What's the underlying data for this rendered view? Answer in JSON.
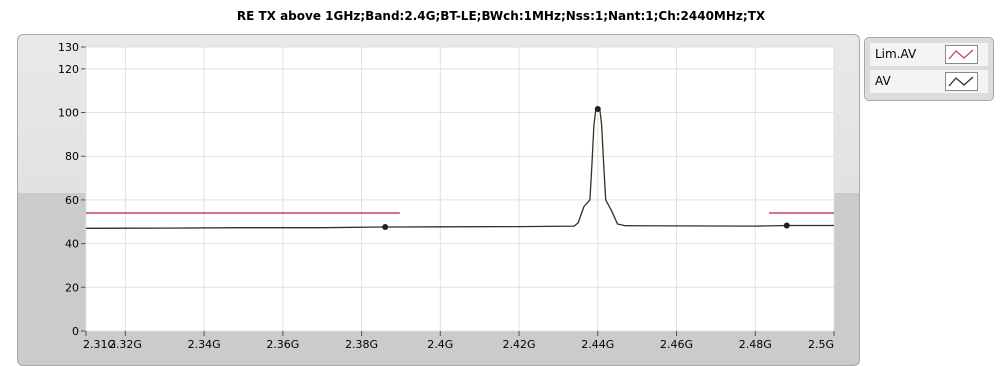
{
  "chart_data": {
    "type": "line",
    "title": "RE TX above 1GHz;Band:2.4G;BT-LE;BWch:1MHz;Nss:1;Nant:1;Ch:2440MHz;TX",
    "xlim": [
      2.31,
      2.5
    ],
    "ylim": [
      0,
      130
    ],
    "x_ticks": [
      {
        "value": 2.31,
        "label": "2.31G"
      },
      {
        "value": 2.32,
        "label": "2.32G"
      },
      {
        "value": 2.34,
        "label": "2.34G"
      },
      {
        "value": 2.36,
        "label": "2.36G"
      },
      {
        "value": 2.38,
        "label": "2.38G"
      },
      {
        "value": 2.4,
        "label": "2.4G"
      },
      {
        "value": 2.42,
        "label": "2.42G"
      },
      {
        "value": 2.44,
        "label": "2.44G"
      },
      {
        "value": 2.46,
        "label": "2.46G"
      },
      {
        "value": 2.48,
        "label": "2.48G"
      },
      {
        "value": 2.5,
        "label": "2.5G"
      }
    ],
    "y_ticks": [
      {
        "value": 0,
        "label": "0"
      },
      {
        "value": 20,
        "label": "20"
      },
      {
        "value": 40,
        "label": "40"
      },
      {
        "value": 60,
        "label": "60"
      },
      {
        "value": 80,
        "label": "80"
      },
      {
        "value": 100,
        "label": "100"
      },
      {
        "value": 120,
        "label": "120"
      },
      {
        "value": 130,
        "label": "130"
      }
    ],
    "grid": true,
    "legend_placement": "right",
    "series": [
      {
        "name": "Lim.AV",
        "color": "#c0407a",
        "segments": [
          [
            [
              2.31,
              54
            ],
            [
              2.3897,
              54
            ]
          ],
          [
            [
              2.4835,
              54
            ],
            [
              2.5,
              54
            ]
          ]
        ]
      },
      {
        "name": "AV",
        "color": "#2e3320",
        "points": [
          [
            2.31,
            47.0
          ],
          [
            2.33,
            47.1
          ],
          [
            2.35,
            47.3
          ],
          [
            2.37,
            47.3
          ],
          [
            2.386,
            47.6
          ],
          [
            2.39,
            47.6
          ],
          [
            2.4,
            47.7
          ],
          [
            2.42,
            47.8
          ],
          [
            2.434,
            48.0
          ],
          [
            2.435,
            49.5
          ],
          [
            2.4365,
            57.0
          ],
          [
            2.438,
            60.0
          ],
          [
            2.4385,
            76.0
          ],
          [
            2.439,
            94.0
          ],
          [
            2.4395,
            101.5
          ],
          [
            2.4405,
            101.5
          ],
          [
            2.441,
            94.0
          ],
          [
            2.4415,
            76.0
          ],
          [
            2.442,
            60.0
          ],
          [
            2.4435,
            55.0
          ],
          [
            2.445,
            49.0
          ],
          [
            2.447,
            48.2
          ],
          [
            2.46,
            48.1
          ],
          [
            2.48,
            48.0
          ],
          [
            2.488,
            48.3
          ],
          [
            2.5,
            48.3
          ]
        ]
      }
    ],
    "markers": [
      {
        "x": 2.386,
        "y": 47.6
      },
      {
        "x": 2.44,
        "y": 101.6
      },
      {
        "x": 2.488,
        "y": 48.3
      }
    ]
  },
  "legend": {
    "items": [
      {
        "label": "Lim.AV",
        "color": "#c0407a"
      },
      {
        "label": "AV",
        "color": "#2e3320"
      }
    ]
  }
}
